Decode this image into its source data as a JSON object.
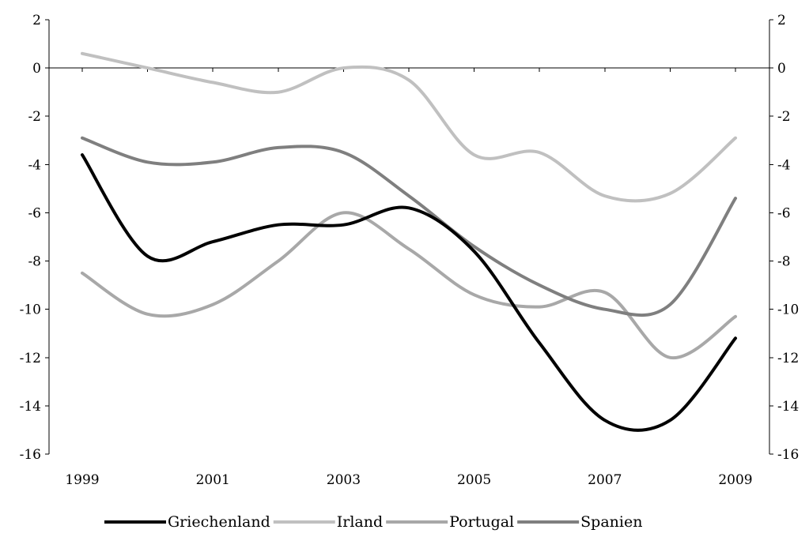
{
  "chart_data": {
    "type": "line",
    "title": "",
    "xlabel": "",
    "ylabel": "",
    "x": [
      1999,
      2000,
      2001,
      2002,
      2003,
      2004,
      2005,
      2006,
      2007,
      2008,
      2009
    ],
    "x_tick_labels": [
      "1999",
      "2001",
      "2003",
      "2005",
      "2007",
      "2009"
    ],
    "y_tick_labels": [
      "2",
      "0",
      "-2",
      "-4",
      "-6",
      "-8",
      "-10",
      "-12",
      "-14",
      "-16"
    ],
    "ylim": [
      -16,
      2
    ],
    "xlim": [
      1999,
      2009
    ],
    "grid": false,
    "legend_position": "bottom",
    "secondary_y_axis_mirrors_primary": true,
    "series": [
      {
        "name": "Griechenland",
        "color": "#000000",
        "values": [
          -3.6,
          -7.8,
          -7.2,
          -6.5,
          -6.5,
          -5.8,
          -7.6,
          -11.4,
          -14.6,
          -14.6,
          -11.2
        ]
      },
      {
        "name": "Irland",
        "color": "#c0c0c0",
        "values": [
          0.6,
          0.0,
          -0.6,
          -1.0,
          0.0,
          -0.5,
          -3.6,
          -3.5,
          -5.3,
          -5.2,
          -2.9
        ]
      },
      {
        "name": "Portugal",
        "color": "#a8a8a8",
        "values": [
          -8.5,
          -10.2,
          -9.8,
          -8.0,
          -6.0,
          -7.5,
          -9.4,
          -9.9,
          -9.3,
          -12.0,
          -10.3
        ]
      },
      {
        "name": "Spanien",
        "color": "#7f7f7f",
        "values": [
          -2.9,
          -3.9,
          -3.9,
          -3.3,
          -3.5,
          -5.3,
          -7.4,
          -9.0,
          -10.0,
          -9.8,
          -5.4
        ]
      }
    ]
  }
}
